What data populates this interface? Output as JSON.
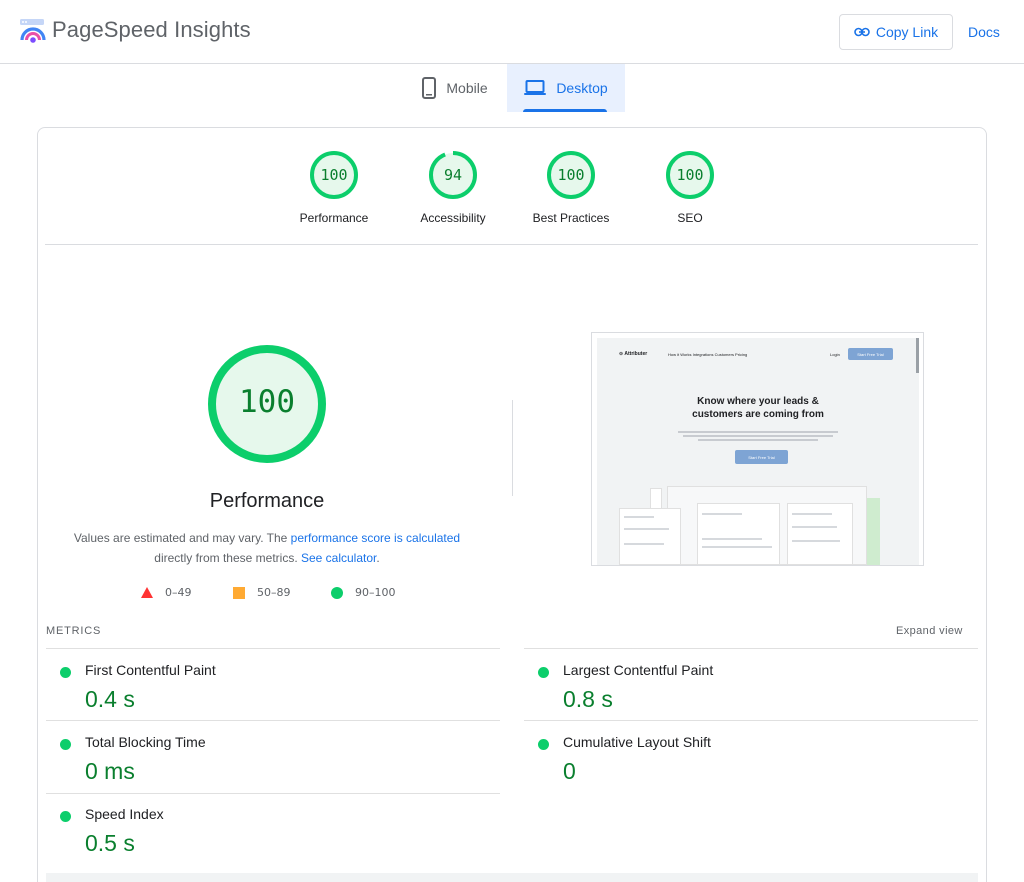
{
  "header": {
    "app_title": "PageSpeed Insights",
    "copy_link_label": "Copy Link",
    "docs_label": "Docs"
  },
  "tabs": [
    {
      "label": "Mobile",
      "icon": "smartphone-icon",
      "selected": false
    },
    {
      "label": "Desktop",
      "icon": "laptop-icon",
      "selected": true
    }
  ],
  "categories": [
    {
      "score": "100",
      "label": "Performance",
      "fraction": 1.0
    },
    {
      "score": "94",
      "label": "Accessibility",
      "fraction": 0.94
    },
    {
      "score": "100",
      "label": "Best Practices",
      "fraction": 1.0
    },
    {
      "score": "100",
      "label": "SEO",
      "fraction": 1.0
    }
  ],
  "performance": {
    "score": "100",
    "title": "Performance",
    "note_prefix": "Values are estimated and may vary. The ",
    "note_link1": "performance score is calculated",
    "note_mid": " directly from these metrics. ",
    "note_link2": "See calculator",
    "note_suffix": "."
  },
  "legend": [
    {
      "shape": "triangle",
      "label": "0–49",
      "color": "#ff3333"
    },
    {
      "shape": "square",
      "label": "50–89",
      "color": "#ffaa33"
    },
    {
      "shape": "circle",
      "label": "90–100",
      "color": "#0cce6b"
    }
  ],
  "screenshot": {
    "logo": "⊙ Attributer",
    "nav": "How it Works    Integrations    Customers    Pricing",
    "login": "Login",
    "trial_button": "Start Free Trial",
    "headline_line1": "Know where your leads &",
    "headline_line2": "customers are coming from",
    "cta": "Start Free Trial"
  },
  "metrics": {
    "title": "METRICS",
    "expand_label": "Expand view",
    "items": [
      {
        "label": "First Contentful Paint",
        "value": "0.4 s"
      },
      {
        "label": "Largest Contentful Paint",
        "value": "0.8 s"
      },
      {
        "label": "Total Blocking Time",
        "value": "0 ms"
      },
      {
        "label": "Cumulative Layout Shift",
        "value": "0"
      },
      {
        "label": "Speed Index",
        "value": "0.5 s"
      }
    ]
  },
  "colors": {
    "pass": "#0cce6b",
    "pass_text": "#0a7f2e",
    "accent": "#1a73e8"
  }
}
